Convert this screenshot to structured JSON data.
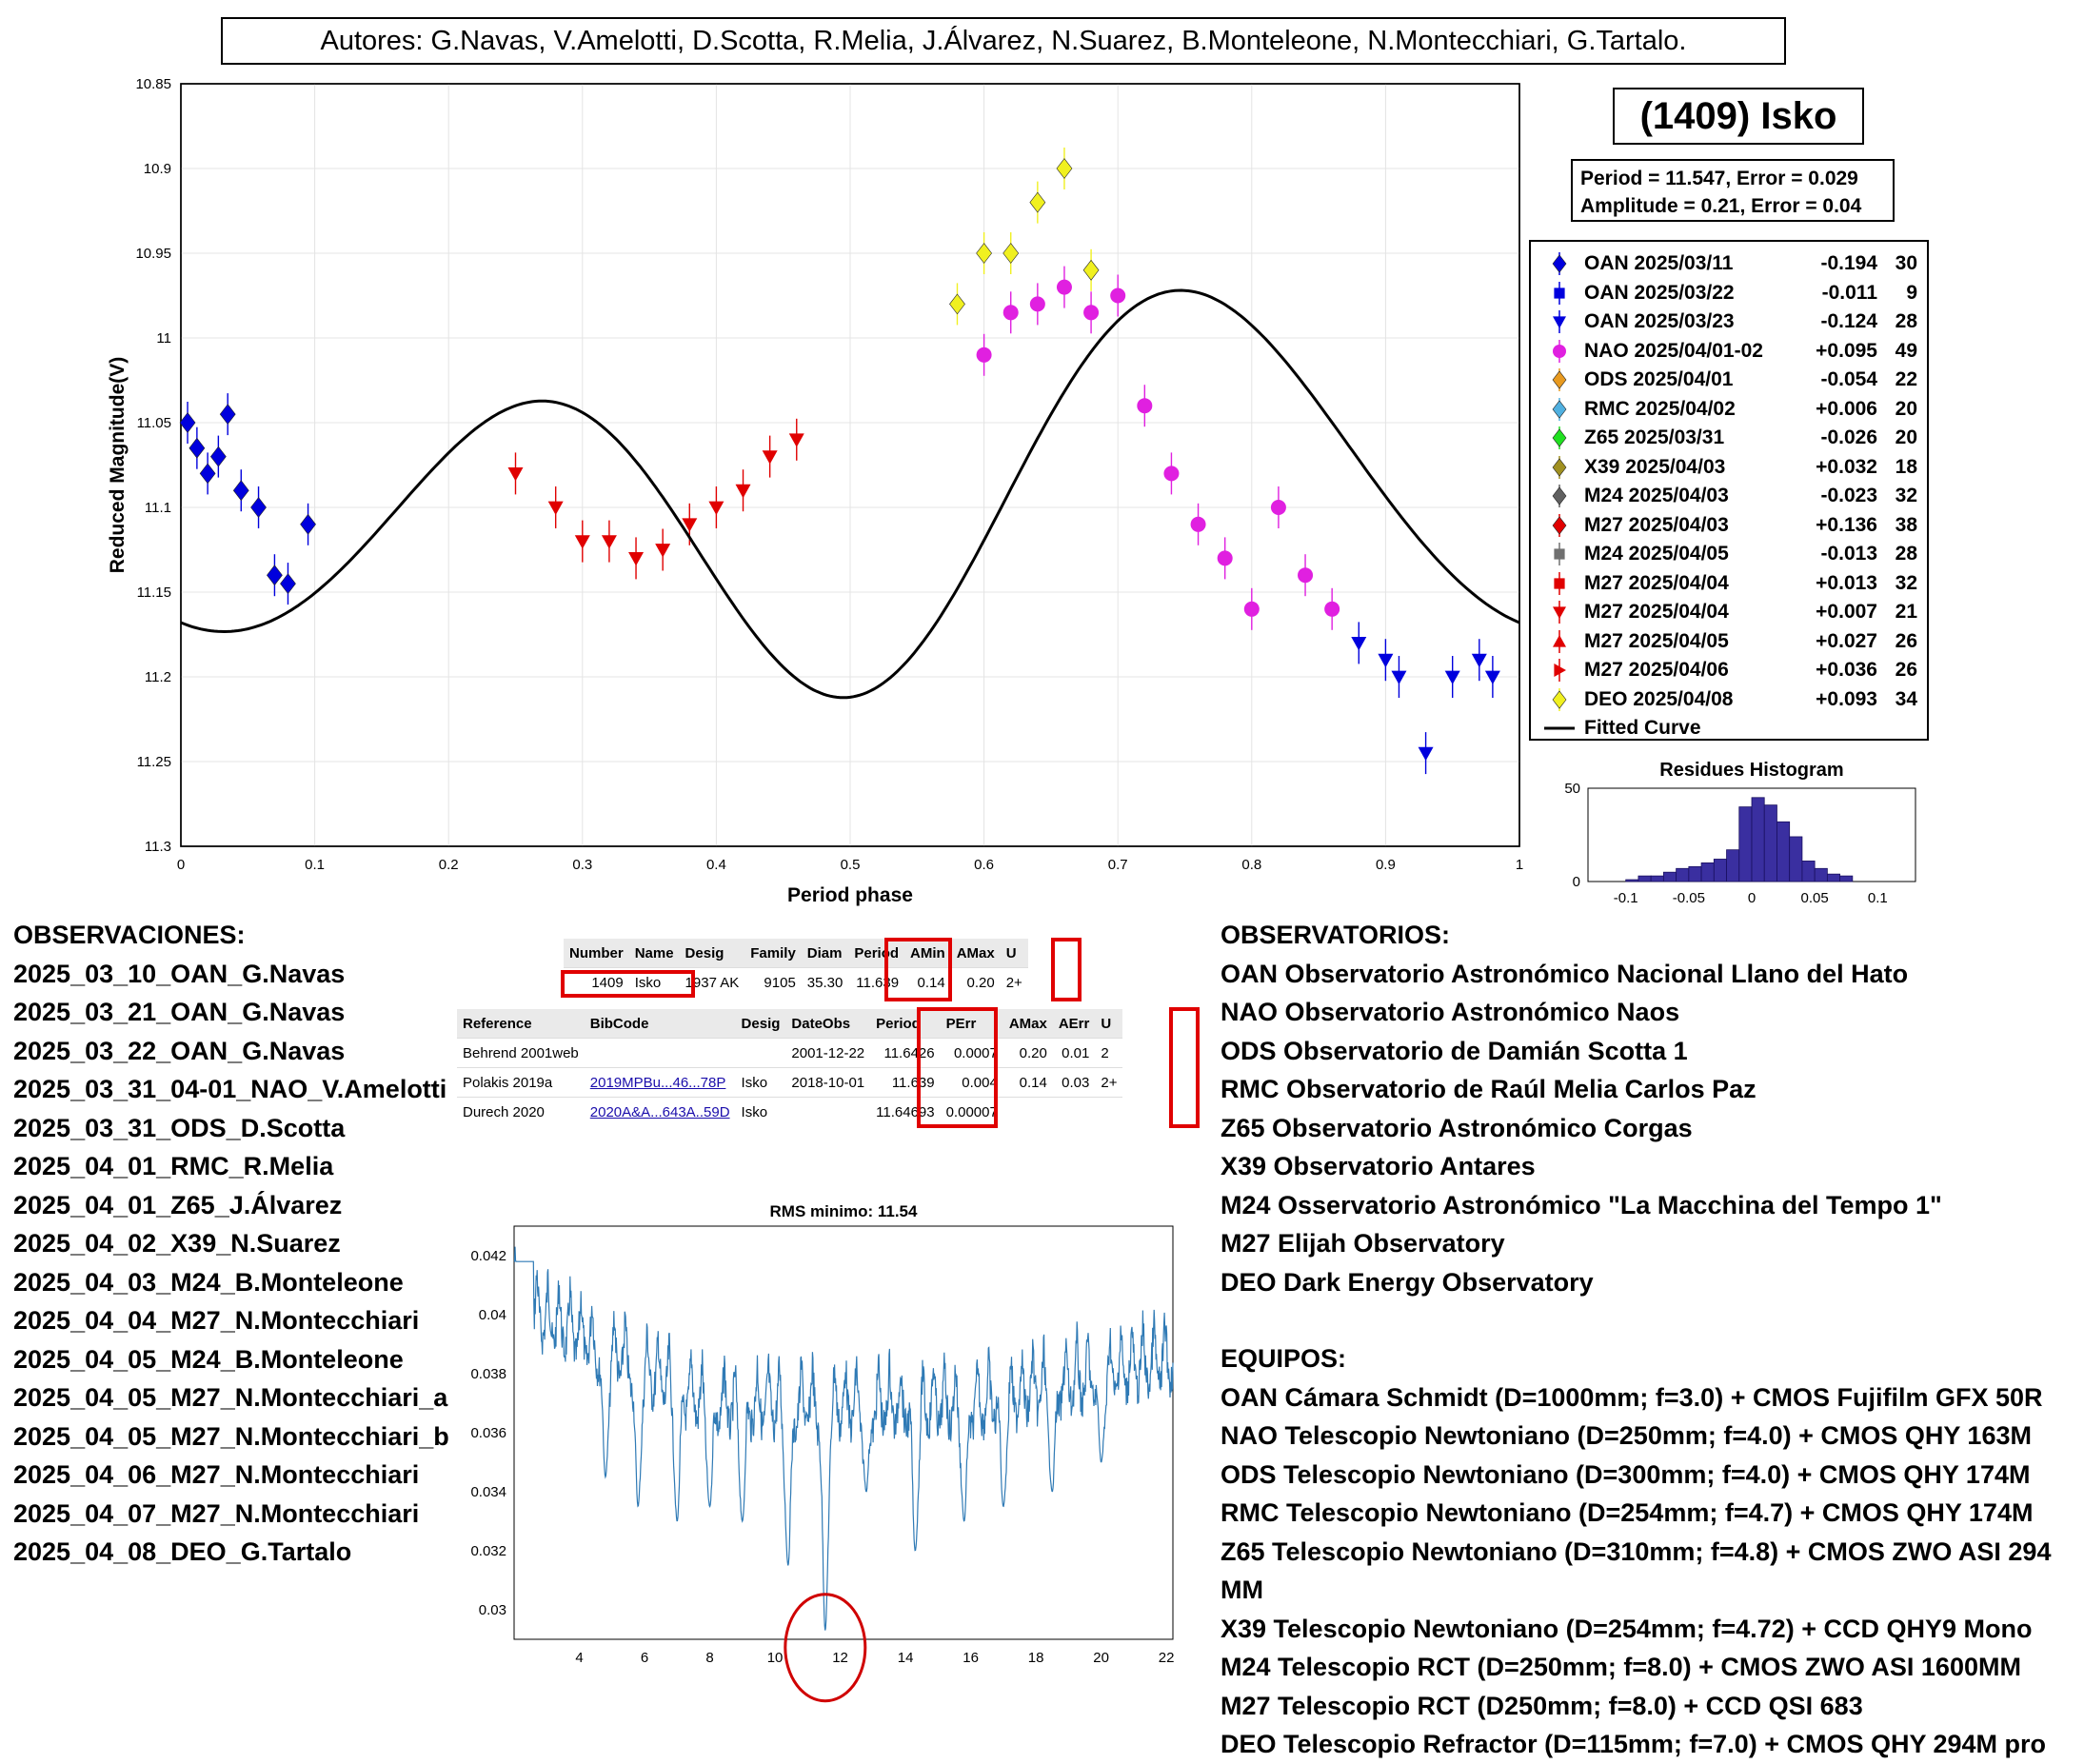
{
  "header": {
    "authors": "Autores: G.Navas, V.Amelotti, D.Scotta, R.Melia, J.Álvarez, N.Suarez, B.Monteleone, N.Montecchiari, G.Tartalo."
  },
  "object_title": "(1409) Isko",
  "fit_box": {
    "line1": "Period =  11.547, Error = 0.029",
    "line2": "Amplitude = 0.21, Error = 0.04"
  },
  "legend": [
    {
      "name": "OAN 2025/03/11",
      "offset": "-0.194",
      "n": "30",
      "color": "#0000dd",
      "marker": "diamond"
    },
    {
      "name": "OAN 2025/03/22",
      "offset": "-0.011",
      "n": "9",
      "color": "#0000dd",
      "marker": "square"
    },
    {
      "name": "OAN 2025/03/23",
      "offset": "-0.124",
      "n": "28",
      "color": "#0000dd",
      "marker": "triangle-down"
    },
    {
      "name": "NAO 2025/04/01-02",
      "offset": "+0.095",
      "n": "49",
      "color": "#e020e0",
      "marker": "circle"
    },
    {
      "name": "ODS 2025/04/01",
      "offset": "-0.054",
      "n": "22",
      "color": "#e89a20",
      "marker": "diamond"
    },
    {
      "name": "RMC 2025/04/02",
      "offset": "+0.006",
      "n": "20",
      "color": "#50b0e0",
      "marker": "diamond"
    },
    {
      "name": "Z65 2025/03/31",
      "offset": "-0.026",
      "n": "20",
      "color": "#20e020",
      "marker": "diamond"
    },
    {
      "name": "X39 2025/04/03",
      "offset": "+0.032",
      "n": "18",
      "color": "#a09020",
      "marker": "diamond"
    },
    {
      "name": "M24 2025/04/03",
      "offset": "-0.023",
      "n": "32",
      "color": "#606060",
      "marker": "diamond"
    },
    {
      "name": "M27 2025/04/03",
      "offset": "+0.136",
      "n": "38",
      "color": "#e00000",
      "marker": "diamond"
    },
    {
      "name": "M24 2025/04/05",
      "offset": "-0.013",
      "n": "28",
      "color": "#707070",
      "marker": "square"
    },
    {
      "name": "M27 2025/04/04",
      "offset": "+0.013",
      "n": "32",
      "color": "#e00000",
      "marker": "square"
    },
    {
      "name": "M27 2025/04/04",
      "offset": "+0.007",
      "n": "21",
      "color": "#e00000",
      "marker": "triangle-down"
    },
    {
      "name": "M27 2025/04/05",
      "offset": "+0.027",
      "n": "26",
      "color": "#e00000",
      "marker": "triangle-up"
    },
    {
      "name": "M27 2025/04/06",
      "offset": "+0.036",
      "n": "26",
      "color": "#e00000",
      "marker": "triangle-right"
    },
    {
      "name": "DEO 2025/04/08",
      "offset": "+0.093",
      "n": "34",
      "color": "#f0f020",
      "marker": "diamond"
    },
    {
      "name": "Fitted Curve",
      "offset": "",
      "n": "",
      "color": "#000000",
      "marker": "line"
    }
  ],
  "observations": {
    "heading": "OBSERVACIONES:",
    "items": [
      "2025_03_10_OAN_G.Navas",
      "2025_03_21_OAN_G.Navas",
      "2025_03_22_OAN_G.Navas",
      "2025_03_31_04-01_NAO_V.Amelotti",
      "2025_03_31_ODS_D.Scotta",
      "2025_04_01_RMC_R.Melia",
      "2025_04_01_Z65_J.Álvarez",
      "2025_04_02_X39_N.Suarez",
      "2025_04_03_M24_B.Monteleone",
      "2025_04_04_M27_N.Montecchiari",
      "2025_04_05_M24_B.Monteleone",
      "2025_04_05_M27_N.Montecchiari_a",
      "2025_04_05_M27_N.Montecchiari_b",
      "2025_04_06_M27_N.Montecchiari",
      "2025_04_07_M27_N.Montecchiari",
      "2025_04_08_DEO_G.Tartalo"
    ]
  },
  "observatories": {
    "heading": "OBSERVATORIOS:",
    "items": [
      "OAN Observatorio Astronómico Nacional Llano del Hato",
      "NAO Observatorio Astronómico Naos",
      "ODS Observatorio de Damián Scotta 1",
      "RMC Observatorio de Raúl Melia Carlos Paz",
      "Z65 Observatorio Astronómico Corgas",
      "X39 Observatorio Antares",
      "M24 Osservatorio Astronómico \"La Macchina del Tempo 1\"",
      "M27 Elijah Observatory",
      "DEO Dark Energy Observatory"
    ]
  },
  "equipment": {
    "heading": "EQUIPOS:",
    "items": [
      "OAN Cámara Schmidt (D=1000mm; f=3.0) + CMOS Fujifilm GFX 50R",
      "NAO Telescopio Newtoniano (D=250mm; f=4.0) + CMOS QHY 163M",
      "ODS Telescopio Newtoniano (D=300mm; f=4.0) + CMOS QHY 174M",
      "RMC Telescopio Newtoniano (D=254mm; f=4.7) + CMOS QHY 174M",
      "Z65 Telescopio Newtoniano (D=310mm; f=4.8) + CMOS ZWO ASI 294 MM",
      "X39 Telescopio Newtoniano (D=254mm; f=4.72) + CCD QHY9 Mono",
      "M24 Telescopio RCT (D=250mm; f=8.0) + CMOS ZWO ASI 1600MM",
      "M27 Telescopio RCT (D250mm; f=8.0) + CCD QSI 683",
      "DEO Telescopio Refractor (D=115mm; f=7.0) + CMOS QHY 294M pro"
    ]
  },
  "lcdb_summary": {
    "headers": [
      "Number",
      "Name",
      "Desig",
      "Family",
      "Diam",
      "Period",
      "AMin",
      "AMax",
      "U"
    ],
    "row": [
      "1409",
      "Isko",
      "1937 AK",
      "9105",
      "35.30",
      "11.639",
      "0.14",
      "0.20",
      "2+"
    ]
  },
  "lcdb_refs": {
    "headers": [
      "Reference",
      "BibCode",
      "Desig",
      "DateObs",
      "Period",
      "PErr",
      "AMax",
      "AErr",
      "U"
    ],
    "rows": [
      [
        "Behrend 2001web",
        "",
        "",
        "2001-12-22",
        "11.6426",
        "0.0007",
        "0.20",
        "0.01",
        "2"
      ],
      [
        "Polakis 2019a",
        "2019MPBu...46...78P",
        "Isko",
        "2018-10-01",
        "11.639",
        "0.004",
        "0.14",
        "0.03",
        "2+"
      ],
      [
        "Durech 2020",
        "2020A&A...643A..59D",
        "Isko",
        "",
        "11.64693",
        "0.00007",
        "",
        "",
        ""
      ]
    ]
  },
  "chart_data": [
    {
      "type": "scatter",
      "title": "",
      "xlabel": "Period phase",
      "ylabel": "Reduced Magnitude(V)",
      "xlim": [
        0,
        1
      ],
      "ylim": [
        10.85,
        11.3
      ],
      "y_reversed": true,
      "grid": true,
      "legend_placement": "outside-right",
      "xticks": [
        "0",
        "0.1",
        "0.2",
        "0.3",
        "0.4",
        "0.5",
        "0.6",
        "0.7",
        "0.8",
        "0.9",
        "1"
      ],
      "yticks": [
        "10.85",
        "10.9",
        "10.95",
        "11",
        "11.05",
        "11.1",
        "11.15",
        "11.2",
        "11.25",
        "11.3"
      ],
      "fitted_curve": {
        "mean": 11.098,
        "harmonics": [
          [
            -0.01,
            0.034
          ],
          [
            0.092,
            0.009
          ],
          [
            -0.012,
            0.0
          ]
        ]
      },
      "series": [
        {
          "name": "OAN 2025/03/11",
          "x": [
            0.005,
            0.012,
            0.02,
            0.028,
            0.035,
            0.045,
            0.058,
            0.07,
            0.08,
            0.095
          ],
          "y": [
            11.05,
            11.065,
            11.08,
            11.07,
            11.045,
            11.09,
            11.1,
            11.14,
            11.145,
            11.11
          ]
        },
        {
          "name": "NAO 2025/04/01-02",
          "x": [
            0.6,
            0.62,
            0.64,
            0.66,
            0.68,
            0.7,
            0.72,
            0.74,
            0.76,
            0.78,
            0.8,
            0.82,
            0.84,
            0.86
          ],
          "y": [
            11.01,
            10.985,
            10.98,
            10.97,
            10.985,
            10.975,
            11.04,
            11.08,
            11.11,
            11.13,
            11.16,
            11.1,
            11.14,
            11.16
          ]
        },
        {
          "name": "M27 2025/04/04",
          "x": [
            0.25,
            0.28,
            0.3,
            0.32,
            0.34,
            0.36,
            0.38,
            0.4,
            0.42,
            0.44,
            0.46
          ],
          "y": [
            11.08,
            11.1,
            11.12,
            11.12,
            11.13,
            11.125,
            11.11,
            11.1,
            11.09,
            11.07,
            11.06
          ]
        },
        {
          "name": "OAN 2025/03/23",
          "x": [
            0.88,
            0.9,
            0.91,
            0.93,
            0.95,
            0.97,
            0.98
          ],
          "y": [
            11.18,
            11.19,
            11.2,
            11.245,
            11.2,
            11.19,
            11.2
          ]
        },
        {
          "name": "DEO 2025/04/08",
          "x": [
            0.58,
            0.6,
            0.62,
            0.64,
            0.66,
            0.68
          ],
          "y": [
            10.98,
            10.95,
            10.95,
            10.92,
            10.9,
            10.96
          ]
        }
      ]
    },
    {
      "type": "bar",
      "title": "Residues Histogram",
      "xlim": [
        -0.13,
        0.13
      ],
      "ylim": [
        0,
        50
      ],
      "xticks": [
        "-0.1",
        "-0.05",
        "0",
        "0.05",
        "0.1"
      ],
      "yticks": [
        "0",
        "50"
      ],
      "x": [
        -0.095,
        -0.085,
        -0.075,
        -0.065,
        -0.055,
        -0.045,
        -0.035,
        -0.025,
        -0.015,
        -0.005,
        0.005,
        0.015,
        0.025,
        0.035,
        0.045,
        0.055,
        0.065,
        0.075
      ],
      "values": [
        1,
        3,
        3,
        5,
        7,
        8,
        10,
        12,
        17,
        40,
        45,
        41,
        32,
        24,
        11,
        7,
        4,
        3
      ]
    },
    {
      "type": "line",
      "title": "RMS minimo: 11.54",
      "xlim": [
        2,
        22.2
      ],
      "ylim": [
        0.029,
        0.043
      ],
      "xticks": [
        "4",
        "6",
        "8",
        "10",
        "12",
        "14",
        "16",
        "18",
        "20",
        "22"
      ],
      "yticks": [
        "0.03",
        "0.032",
        "0.034",
        "0.036",
        "0.038",
        "0.04",
        "0.042"
      ],
      "minimum": {
        "x": 11.54,
        "y": 0.0293
      }
    }
  ]
}
